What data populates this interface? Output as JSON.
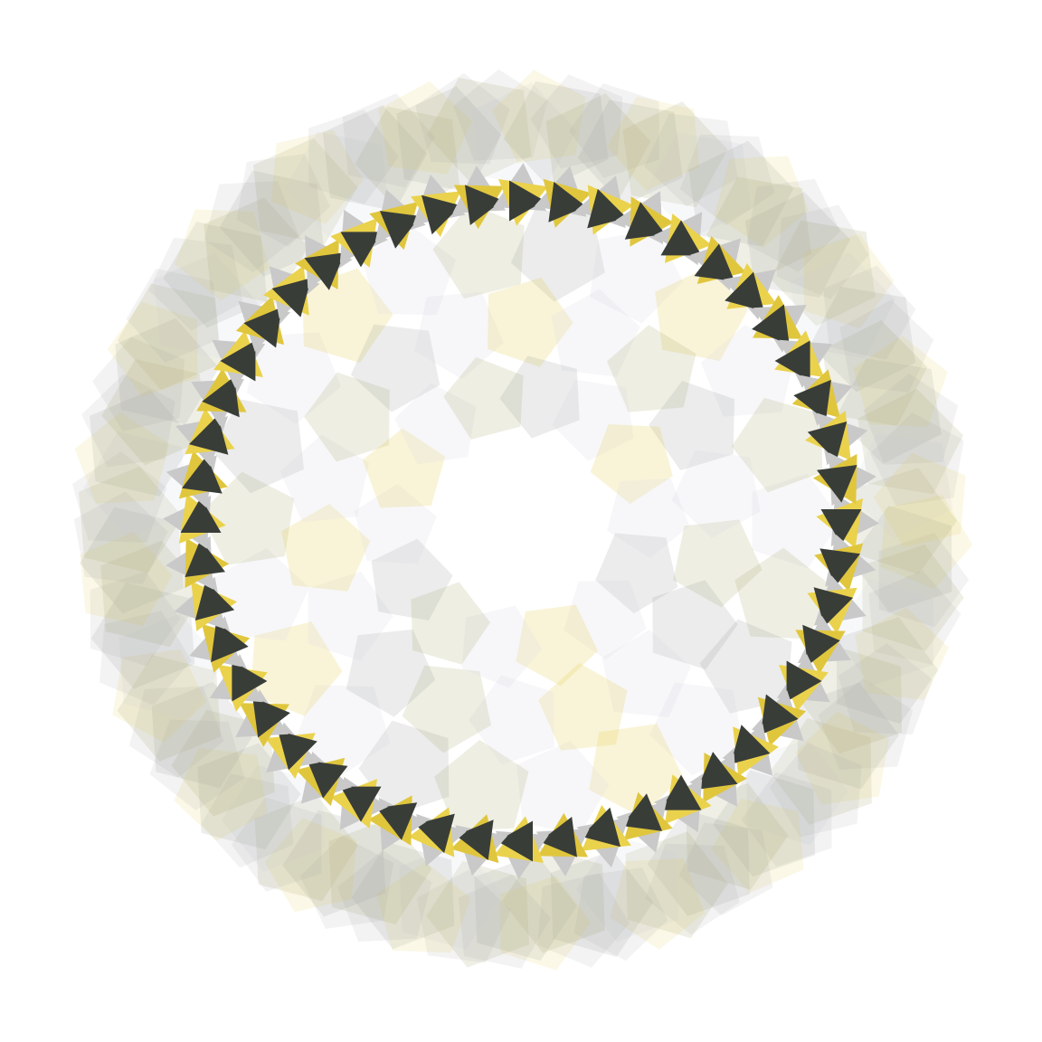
{
  "artwork": {
    "palette": {
      "background": "#ffffff",
      "olive": "#a9a874",
      "gray": "#9b9e9b",
      "pale": "#d5d8e2",
      "yellow": "#e0c63d",
      "lightYellow": "#ead24c",
      "silver": "#c9c9c9",
      "dark": "#393d38"
    },
    "outerBand": {
      "shape": "pentagon",
      "count": 64,
      "opacity": 0.18
    },
    "innerBand": {
      "shape": "pentagon",
      "count": 54,
      "opacity": 0.15
    },
    "arrowRing": {
      "shape": "triangle",
      "count": 48,
      "direction": "clockwise"
    }
  }
}
